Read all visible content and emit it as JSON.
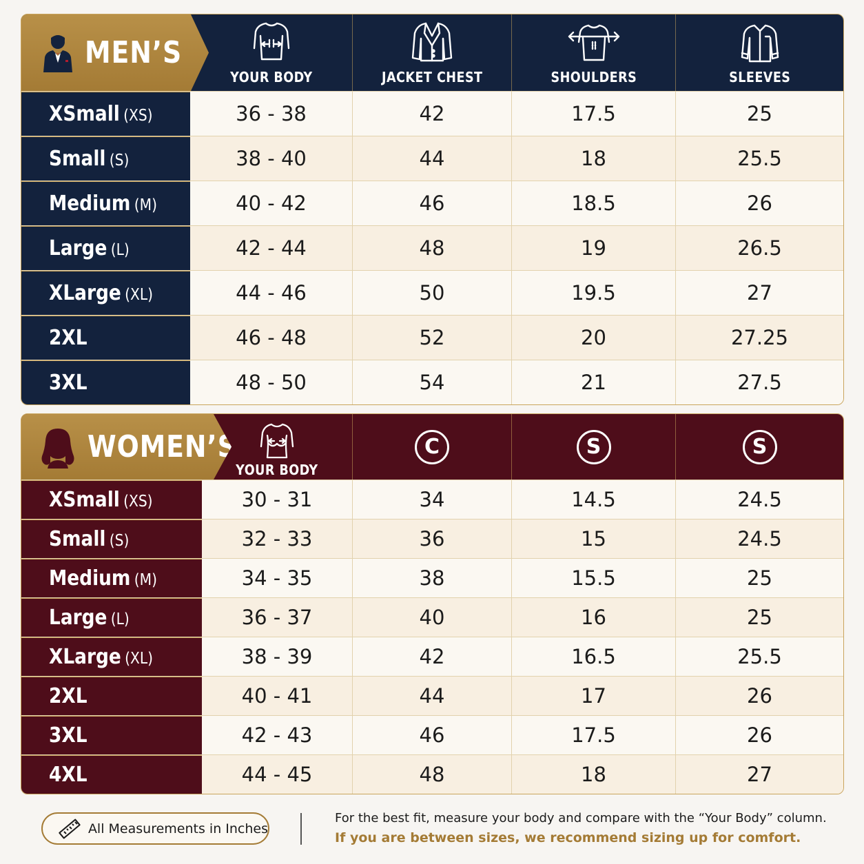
{
  "men": {
    "title": "MEN’S",
    "columns": [
      "YOUR BODY",
      "JACKET CHEST",
      "SHOULDERS",
      "SLEEVES"
    ],
    "column_icons": [
      "chest-measure-icon",
      "jacket-icon",
      "shoulders-measure-icon",
      "shirt-sleeves-icon"
    ],
    "rows": [
      {
        "size": "XSmall",
        "abbr": "(XS)",
        "values": [
          "36 - 38",
          "42",
          "17.5",
          "25"
        ]
      },
      {
        "size": "Small",
        "abbr": "(S)",
        "values": [
          "38 - 40",
          "44",
          "18",
          "25.5"
        ]
      },
      {
        "size": "Medium",
        "abbr": "(M)",
        "values": [
          "40 - 42",
          "46",
          "18.5",
          "26"
        ]
      },
      {
        "size": "Large",
        "abbr": "(L)",
        "values": [
          "42 - 44",
          "48",
          "19",
          "26.5"
        ]
      },
      {
        "size": "XLarge",
        "abbr": "(XL)",
        "values": [
          "44 - 46",
          "50",
          "19.5",
          "27"
        ]
      },
      {
        "size": "2XL",
        "abbr": "",
        "values": [
          "46 - 48",
          "52",
          "20",
          "27.25"
        ]
      },
      {
        "size": "3XL",
        "abbr": "",
        "values": [
          "48 - 50",
          "54",
          "21",
          "27.5"
        ]
      }
    ]
  },
  "women": {
    "title": "WOMEN’S",
    "columns": [
      "YOUR BODY",
      "C",
      "S",
      "S"
    ],
    "column_icons": [
      "bust-measure-icon",
      "letter-c-circle-icon",
      "letter-s-circle-icon",
      "letter-s-circle-icon"
    ],
    "rows": [
      {
        "size": "XSmall",
        "abbr": "(XS)",
        "values": [
          "30 - 31",
          "34",
          "14.5",
          "24.5"
        ]
      },
      {
        "size": "Small",
        "abbr": "(S)",
        "values": [
          "32 - 33",
          "36",
          "15",
          "24.5"
        ]
      },
      {
        "size": "Medium",
        "abbr": "(M)",
        "values": [
          "34 - 35",
          "38",
          "15.5",
          "25"
        ]
      },
      {
        "size": "Large",
        "abbr": "(L)",
        "values": [
          "36 - 37",
          "40",
          "16",
          "25"
        ]
      },
      {
        "size": "XLarge",
        "abbr": "(XL)",
        "values": [
          "38 - 39",
          "42",
          "16.5",
          "25.5"
        ]
      },
      {
        "size": "2XL",
        "abbr": "",
        "values": [
          "40 - 41",
          "44",
          "17",
          "26"
        ]
      },
      {
        "size": "3XL",
        "abbr": "",
        "values": [
          "42 - 43",
          "46",
          "17.5",
          "26"
        ]
      },
      {
        "size": "4XL",
        "abbr": "",
        "values": [
          "44 - 45",
          "48",
          "18",
          "27"
        ]
      }
    ]
  },
  "footer": {
    "units_label": "All Measurements in Inches",
    "note": "For the best fit, measure your body and compare with the “Your Body” column.",
    "tip": "If you are between sizes, we recommend sizing up for comfort."
  },
  "colors": {
    "men_navy": "#13223d",
    "women_burgundy": "#4e0d1a",
    "gold": "#b89048",
    "cream": "#fbf7ef"
  }
}
